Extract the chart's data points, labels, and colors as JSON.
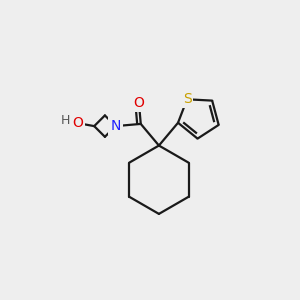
{
  "bg_color": "#eeeeee",
  "bond_color": "#1a1a1a",
  "bond_width": 1.6,
  "atom_colors": {
    "O": "#e00000",
    "N": "#2020ff",
    "S": "#c8a000",
    "C": "#1a1a1a"
  },
  "font_size": 10,
  "figsize": [
    3.0,
    3.0
  ],
  "dpi": 100
}
